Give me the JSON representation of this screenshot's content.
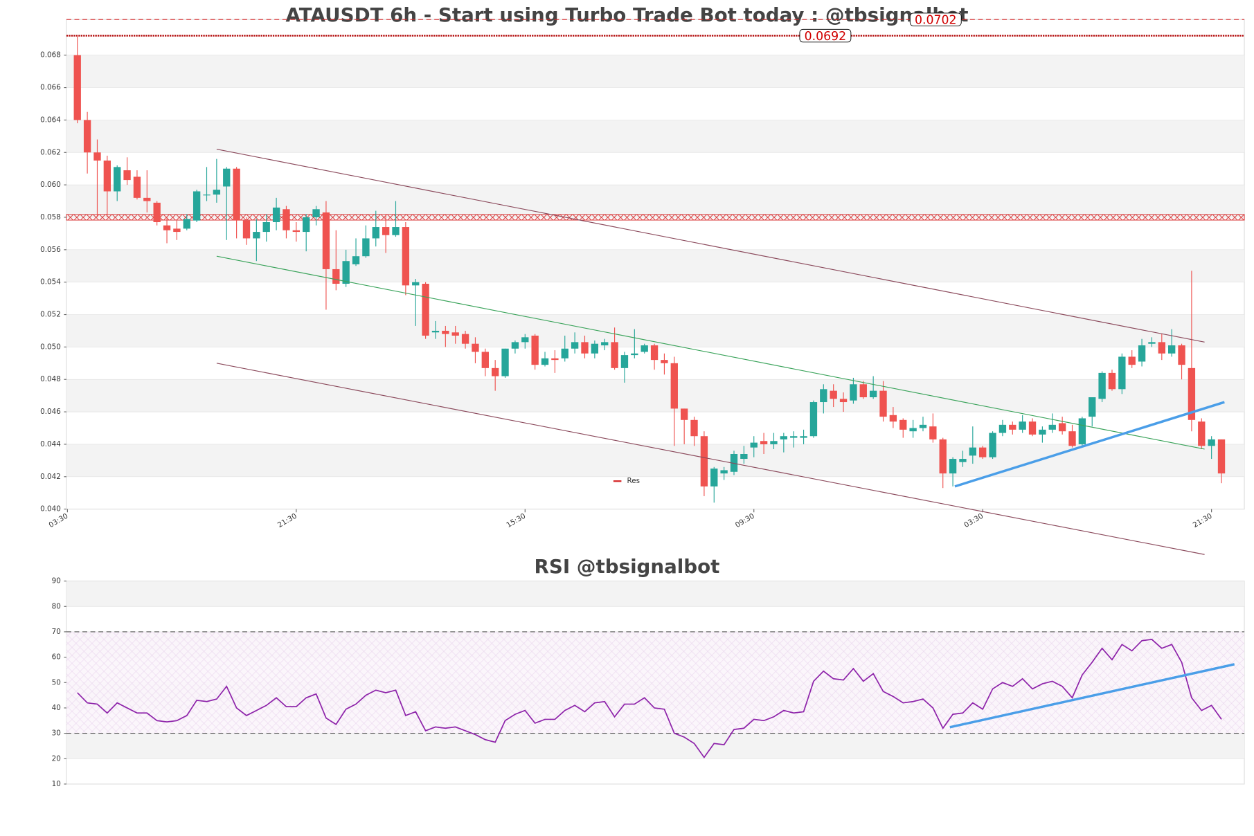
{
  "chart_data": [
    {
      "type": "candlestick",
      "title": "ATAUSDT 6h - Start using Turbo Trade Bot today : @tbsignalbot",
      "open": [
        0.068,
        0.064,
        0.062,
        0.0615,
        0.0596,
        0.0609,
        0.0605,
        0.0592,
        0.0589,
        0.0575,
        0.0573,
        0.0573,
        0.0578,
        0.0594,
        0.0594,
        0.0599,
        0.061,
        0.0578,
        0.0567,
        0.0571,
        0.0577,
        0.0585,
        0.0572,
        0.0571,
        0.058,
        0.0583,
        0.0548,
        0.0539,
        0.0551,
        0.0556,
        0.0567,
        0.0574,
        0.0569,
        0.0574,
        0.0538,
        0.0539,
        0.0509,
        0.051,
        0.0509,
        0.0508,
        0.0502,
        0.0497,
        0.0487,
        0.0482,
        0.0499,
        0.0503,
        0.0507,
        0.0489,
        0.0493,
        0.0493,
        0.0499,
        0.0503,
        0.0496,
        0.0501,
        0.0503,
        0.0487,
        0.0495,
        0.0497,
        0.0501,
        0.0492,
        0.049,
        0.0462,
        0.0455,
        0.0445,
        0.0414,
        0.0422,
        0.0423,
        0.0431,
        0.0438,
        0.0442,
        0.044,
        0.0443,
        0.0444,
        0.0444,
        0.0445,
        0.0466,
        0.0473,
        0.0468,
        0.0467,
        0.0477,
        0.0469,
        0.0473,
        0.0458,
        0.0455,
        0.0448,
        0.045,
        0.0451,
        0.0443,
        0.0422,
        0.0429,
        0.0433,
        0.0438,
        0.0432,
        0.0447,
        0.0452,
        0.0449,
        0.0454,
        0.0446,
        0.0449,
        0.0453,
        0.0448,
        0.044,
        0.0457,
        0.0468,
        0.0484,
        0.0474,
        0.0494,
        0.0491,
        0.0502,
        0.0503,
        0.0496,
        0.0501,
        0.0487,
        0.0454,
        0.0439,
        0.0443
      ],
      "high": [
        0.0692,
        0.0645,
        0.0628,
        0.0618,
        0.0612,
        0.0617,
        0.0609,
        0.0609,
        0.059,
        0.058,
        0.0578,
        0.0582,
        0.0597,
        0.0611,
        0.0616,
        0.0611,
        0.0611,
        0.058,
        0.0579,
        0.0582,
        0.0592,
        0.0587,
        0.0577,
        0.0582,
        0.0587,
        0.059,
        0.0572,
        0.056,
        0.0567,
        0.0575,
        0.0584,
        0.0582,
        0.059,
        0.0577,
        0.0542,
        0.054,
        0.0516,
        0.0513,
        0.0513,
        0.051,
        0.0506,
        0.0499,
        0.0492,
        0.0499,
        0.0504,
        0.0508,
        0.0508,
        0.0497,
        0.0498,
        0.0507,
        0.0509,
        0.0507,
        0.0504,
        0.0505,
        0.0512,
        0.0497,
        0.0511,
        0.0502,
        0.0502,
        0.0496,
        0.0494,
        0.0462,
        0.0457,
        0.0448,
        0.0426,
        0.0426,
        0.0436,
        0.0439,
        0.0445,
        0.0447,
        0.0447,
        0.0447,
        0.0448,
        0.0449,
        0.0467,
        0.0477,
        0.0477,
        0.0472,
        0.0481,
        0.0479,
        0.0482,
        0.0479,
        0.0463,
        0.0456,
        0.0455,
        0.0457,
        0.0459,
        0.0444,
        0.0432,
        0.0436,
        0.0451,
        0.0439,
        0.0448,
        0.0455,
        0.0454,
        0.0458,
        0.0456,
        0.0451,
        0.0459,
        0.0457,
        0.0452,
        0.0457,
        0.0469,
        0.0485,
        0.0486,
        0.0496,
        0.0498,
        0.0505,
        0.0506,
        0.0508,
        0.0511,
        0.0502,
        0.0547,
        0.0456,
        0.0445,
        0.0443
      ],
      "low": [
        0.0638,
        0.0607,
        0.058,
        0.058,
        0.059,
        0.06,
        0.0591,
        0.0583,
        0.0575,
        0.0564,
        0.0566,
        0.0572,
        0.0577,
        0.059,
        0.0589,
        0.0566,
        0.0567,
        0.0563,
        0.0553,
        0.0565,
        0.0572,
        0.0567,
        0.0565,
        0.0559,
        0.0575,
        0.0523,
        0.0535,
        0.0537,
        0.055,
        0.0555,
        0.0562,
        0.0558,
        0.0568,
        0.0532,
        0.0513,
        0.0505,
        0.0505,
        0.05,
        0.0502,
        0.0499,
        0.049,
        0.0482,
        0.0473,
        0.0481,
        0.0496,
        0.0499,
        0.0486,
        0.0488,
        0.0484,
        0.0491,
        0.0496,
        0.0493,
        0.0493,
        0.0498,
        0.0486,
        0.0478,
        0.0493,
        0.0496,
        0.0486,
        0.0483,
        0.0439,
        0.044,
        0.0439,
        0.0408,
        0.0404,
        0.0418,
        0.0421,
        0.0428,
        0.0432,
        0.0434,
        0.0437,
        0.0435,
        0.0438,
        0.044,
        0.0444,
        0.0459,
        0.0463,
        0.046,
        0.0465,
        0.0468,
        0.0468,
        0.0454,
        0.045,
        0.0444,
        0.0444,
        0.0448,
        0.0441,
        0.0413,
        0.0414,
        0.0426,
        0.0428,
        0.0431,
        0.0431,
        0.0445,
        0.0446,
        0.0447,
        0.0445,
        0.0441,
        0.0447,
        0.0446,
        0.0438,
        0.0439,
        0.0451,
        0.0466,
        0.0473,
        0.0471,
        0.0487,
        0.0488,
        0.05,
        0.0492,
        0.0494,
        0.048,
        0.0448,
        0.0437,
        0.0431,
        0.0416
      ],
      "close": [
        0.064,
        0.062,
        0.0615,
        0.0596,
        0.0611,
        0.0603,
        0.0592,
        0.059,
        0.0577,
        0.0572,
        0.0571,
        0.0579,
        0.0596,
        0.0594,
        0.0597,
        0.061,
        0.0578,
        0.0567,
        0.0571,
        0.0577,
        0.0586,
        0.0572,
        0.0571,
        0.058,
        0.0585,
        0.0548,
        0.0539,
        0.0553,
        0.0556,
        0.0567,
        0.0574,
        0.0569,
        0.0574,
        0.0538,
        0.054,
        0.0507,
        0.051,
        0.0508,
        0.0507,
        0.0502,
        0.0497,
        0.0487,
        0.0482,
        0.0499,
        0.0503,
        0.0506,
        0.0489,
        0.0493,
        0.0492,
        0.0499,
        0.0503,
        0.0496,
        0.0502,
        0.0503,
        0.0487,
        0.0495,
        0.0496,
        0.0501,
        0.0492,
        0.049,
        0.0462,
        0.0455,
        0.0445,
        0.0414,
        0.0425,
        0.0424,
        0.0434,
        0.0434,
        0.0441,
        0.044,
        0.0442,
        0.0445,
        0.0445,
        0.0445,
        0.0466,
        0.0474,
        0.0468,
        0.0466,
        0.0477,
        0.0469,
        0.0473,
        0.0457,
        0.0454,
        0.0449,
        0.045,
        0.0452,
        0.0443,
        0.0422,
        0.0431,
        0.0431,
        0.0438,
        0.0432,
        0.0447,
        0.0452,
        0.0449,
        0.0454,
        0.0446,
        0.0449,
        0.0452,
        0.0448,
        0.0439,
        0.0456,
        0.0469,
        0.0484,
        0.0474,
        0.0494,
        0.0489,
        0.0501,
        0.0503,
        0.0496,
        0.0501,
        0.0489,
        0.0455,
        0.0439,
        0.0443,
        0.0422
      ],
      "up_color": "#26a69a",
      "down_color": "#ef5350",
      "xlim": [
        -1.1,
        117.3
      ],
      "xticks": [
        {
          "value": -1,
          "label": "03:30"
        },
        {
          "value": 22,
          "label": "21:30"
        },
        {
          "value": 45,
          "label": "15:30"
        },
        {
          "value": 68,
          "label": "09:30"
        },
        {
          "value": 91,
          "label": "03:30"
        },
        {
          "value": 114,
          "label": "21:30"
        }
      ],
      "ylim": [
        0.04,
        0.0702
      ],
      "yticks": [
        {
          "value": 0.04,
          "label": "0.040"
        },
        {
          "value": 0.042,
          "label": "0.042"
        },
        {
          "value": 0.044,
          "label": "0.044"
        },
        {
          "value": 0.046,
          "label": "0.046"
        },
        {
          "value": 0.048,
          "label": "0.048"
        },
        {
          "value": 0.05,
          "label": "0.050"
        },
        {
          "value": 0.052,
          "label": "0.052"
        },
        {
          "value": 0.054,
          "label": "0.054"
        },
        {
          "value": 0.056,
          "label": "0.056"
        },
        {
          "value": 0.058,
          "label": "0.058"
        },
        {
          "value": 0.06,
          "label": "0.060"
        },
        {
          "value": 0.062,
          "label": "0.062"
        },
        {
          "value": 0.064,
          "label": "0.064"
        },
        {
          "value": 0.066,
          "label": "0.066"
        },
        {
          "value": 0.068,
          "label": "0.068"
        }
      ],
      "grid": true,
      "hlines": [
        {
          "value": 0.0702,
          "style": "dashed",
          "color": "#d62728"
        },
        {
          "value": 0.0692,
          "style": "dotted",
          "color": "#b00000"
        }
      ],
      "levels": [
        {
          "name": "Res",
          "value": 0.058,
          "color": "#d62728"
        }
      ],
      "trendlines": [
        {
          "x": [
            14,
            113.3
          ],
          "y": [
            0.0622,
            0.0503
          ],
          "color": "#8b4a5c",
          "width": 1
        },
        {
          "x": [
            14,
            113.3
          ],
          "y": [
            0.0556,
            0.0437
          ],
          "color": "#3aa35a",
          "width": 1
        },
        {
          "x": [
            14,
            113.3
          ],
          "y": [
            0.049,
            0.0372
          ],
          "color": "#8b4a5c",
          "width": 1
        },
        {
          "x": [
            88.2,
            115.3
          ],
          "y": [
            0.0414,
            0.0466
          ],
          "color": "#4a9ee8",
          "width": 3
        }
      ]
    },
    {
      "type": "line",
      "title": "RSI @tbsignalbot",
      "values": [
        46,
        42,
        41.5,
        38,
        42,
        40,
        38,
        38,
        35,
        34.5,
        35,
        37,
        43,
        42.5,
        43.5,
        48.5,
        40,
        37,
        39,
        41,
        44,
        40.5,
        40.5,
        44,
        45.5,
        36,
        33.5,
        39.5,
        41.5,
        45,
        47,
        46,
        47,
        37,
        38.5,
        31,
        32.5,
        32,
        32.5,
        31,
        29.5,
        27.5,
        26.5,
        35,
        37.5,
        39,
        34,
        35.5,
        35.5,
        39,
        41,
        38.5,
        42,
        42.5,
        36.5,
        41.5,
        41.5,
        44,
        40,
        39.5,
        30,
        28.5,
        26,
        20.5,
        26,
        25.5,
        31.5,
        32,
        35.5,
        35,
        36.5,
        39,
        38,
        38.5,
        50.5,
        54.5,
        51.5,
        51,
        55.5,
        50.5,
        53.5,
        46.5,
        44.5,
        42,
        42.5,
        43.5,
        40,
        32,
        37.5,
        38,
        42,
        39.5,
        47.5,
        50,
        48.5,
        51.5,
        47.5,
        49.5,
        50.5,
        48.5,
        44,
        53,
        58,
        63.5,
        59,
        65,
        62.5,
        66.5,
        67,
        63.5,
        65,
        58,
        44,
        39,
        41,
        35.5
      ],
      "color": "#8e24aa",
      "xlim": [
        -1.1,
        117.3
      ],
      "ylim": [
        10,
        90
      ],
      "yticks": [
        10,
        20,
        30,
        40,
        50,
        60,
        70,
        80,
        90
      ],
      "grid": true,
      "levels": [
        30,
        70
      ],
      "trendlines": [
        {
          "x": [
            87.7,
            116.3
          ],
          "y": [
            32.4,
            57.2
          ],
          "color": "#4a9ee8",
          "width": 3
        }
      ]
    }
  ]
}
